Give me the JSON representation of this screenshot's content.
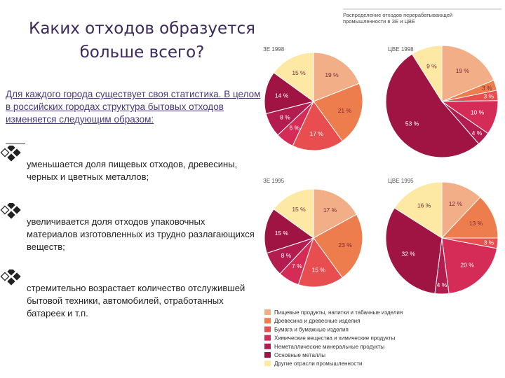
{
  "title": {
    "line1": "Каких отходов образуется",
    "line2": "больше всего?"
  },
  "intro": "Для каждого города существует своя статистика. В целом в российских городах структура бытовых отходов изменяется следующим образом:",
  "bullets": [
    "уменьшается доля пищевых отходов, древесины, черных и цветных металлов;",
    "увеличивается доля отходов упаковочных материалов изготовленных из трудно разлагающихся веществ;",
    "стремительно возрастает количество отслужившей бытовой техники, автомобилей, отработанных батареек и т.п."
  ],
  "chart_header": {
    "line1": "Распределение отходов перерабатывающей",
    "line2": "промышленности в ЗЕ и ЦВЕ"
  },
  "chart_data": {
    "type": "pie",
    "categories": [
      "Пищевые продукты, напитки и табачные изделия",
      "Древесина и древесные изделия",
      "Бумага и бумажные изделия",
      "Химические вещества и химические продукты",
      "Неметаллические минеральные продукты",
      "Основные металлы",
      "Другие отрасли промышленности"
    ],
    "colors": [
      "#f2ae86",
      "#ee7d4d",
      "#e84d4f",
      "#d42c56",
      "#b31c4e",
      "#a01443",
      "#fde9a3"
    ],
    "charts": [
      {
        "name": "ЗЕ 1998",
        "values": [
          19,
          21,
          17,
          6,
          8,
          14,
          15
        ],
        "labels": [
          "19 %",
          "21 %",
          "17 %",
          "6 %",
          "8 %",
          "14 %",
          "15 %"
        ]
      },
      {
        "name": "ЦВЕ 1998",
        "values": [
          19,
          3,
          3,
          10,
          4,
          53,
          9
        ],
        "labels": [
          "19 %",
          "3 %",
          "3 %",
          "10 %",
          "4 %",
          "53 %",
          "9 %"
        ]
      },
      {
        "name": "ЗЕ 1995",
        "values": [
          17,
          23,
          15,
          7,
          8,
          15,
          15
        ],
        "labels": [
          "17 %",
          "23 %",
          "15 %",
          "7 %",
          "8 %",
          "15 %",
          "15 %"
        ]
      },
      {
        "name": "ЦВЕ 1995",
        "values": [
          12,
          13,
          3,
          20,
          4,
          32,
          16
        ],
        "labels": [
          "12 %",
          "13 %",
          "3 %",
          "20 %",
          "4 %",
          "32 %",
          "16 %"
        ]
      }
    ]
  }
}
